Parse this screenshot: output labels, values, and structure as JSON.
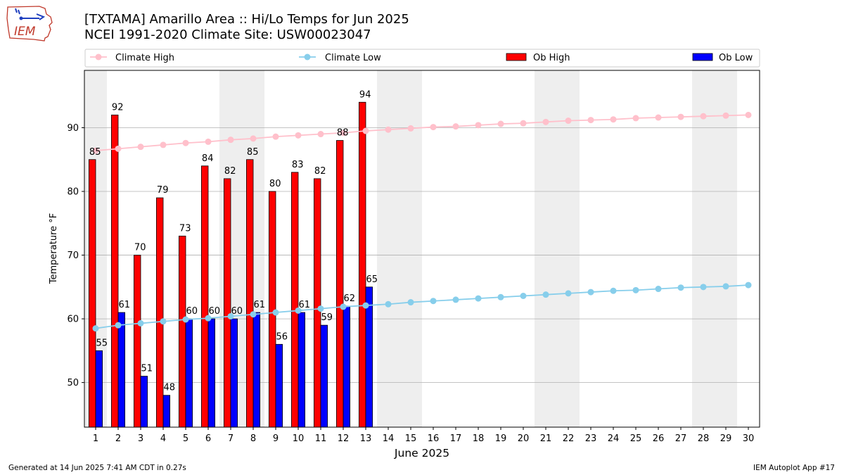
{
  "header": {
    "title_line1": "[TXTAMA] Amarillo Area :: Hi/Lo Temps for Jun 2025",
    "title_line2": "NCEI 1991-2020 Climate Site: USW00023047",
    "logo_text": "IEM"
  },
  "footer": {
    "generated": "Generated at 14 Jun 2025 7:41 AM CDT in 0.27s",
    "app": "IEM Autoplot App #17"
  },
  "colors": {
    "climate_high": "#ffc0cb",
    "climate_low": "#87ceeb",
    "ob_high": "#ff0000",
    "ob_low": "#0000ff",
    "weekend_shade": "#eeeeee",
    "grid": "#b0b0b0"
  },
  "chart_data": {
    "type": "bar",
    "xlabel": "June 2025",
    "ylabel": "Temperature °F",
    "xlim": [
      0.5,
      30.5
    ],
    "ylim": [
      43,
      99
    ],
    "yticks": [
      50,
      60,
      70,
      80,
      90
    ],
    "grid": "horizontal",
    "legend_position": "top",
    "weekend_days": [
      1,
      7,
      8,
      14,
      15,
      21,
      22,
      28,
      29
    ],
    "days": [
      1,
      2,
      3,
      4,
      5,
      6,
      7,
      8,
      9,
      10,
      11,
      12,
      13,
      14,
      15,
      16,
      17,
      18,
      19,
      20,
      21,
      22,
      23,
      24,
      25,
      26,
      27,
      28,
      29,
      30
    ],
    "series": [
      {
        "name": "Climate High",
        "kind": "line",
        "values": [
          86.4,
          86.7,
          87.0,
          87.3,
          87.6,
          87.8,
          88.1,
          88.3,
          88.6,
          88.8,
          89.0,
          89.2,
          89.5,
          89.7,
          89.9,
          90.1,
          90.2,
          90.4,
          90.6,
          90.7,
          90.9,
          91.1,
          91.2,
          91.3,
          91.5,
          91.6,
          91.7,
          91.8,
          91.9,
          92.0
        ]
      },
      {
        "name": "Climate Low",
        "kind": "line",
        "values": [
          58.5,
          59.0,
          59.3,
          59.6,
          59.9,
          60.1,
          60.4,
          60.7,
          61.0,
          61.3,
          61.6,
          61.9,
          62.1,
          62.3,
          62.6,
          62.8,
          63.0,
          63.2,
          63.4,
          63.6,
          63.8,
          64.0,
          64.2,
          64.4,
          64.5,
          64.7,
          64.9,
          65.0,
          65.1,
          65.3
        ]
      },
      {
        "name": "Ob High",
        "kind": "bar",
        "values": [
          85,
          92,
          70,
          79,
          73,
          84,
          82,
          85,
          80,
          83,
          82,
          88,
          94
        ]
      },
      {
        "name": "Ob Low",
        "kind": "bar",
        "values": [
          55,
          61,
          51,
          48,
          60,
          60,
          60,
          61,
          56,
          61,
          59,
          62,
          65
        ]
      }
    ]
  }
}
